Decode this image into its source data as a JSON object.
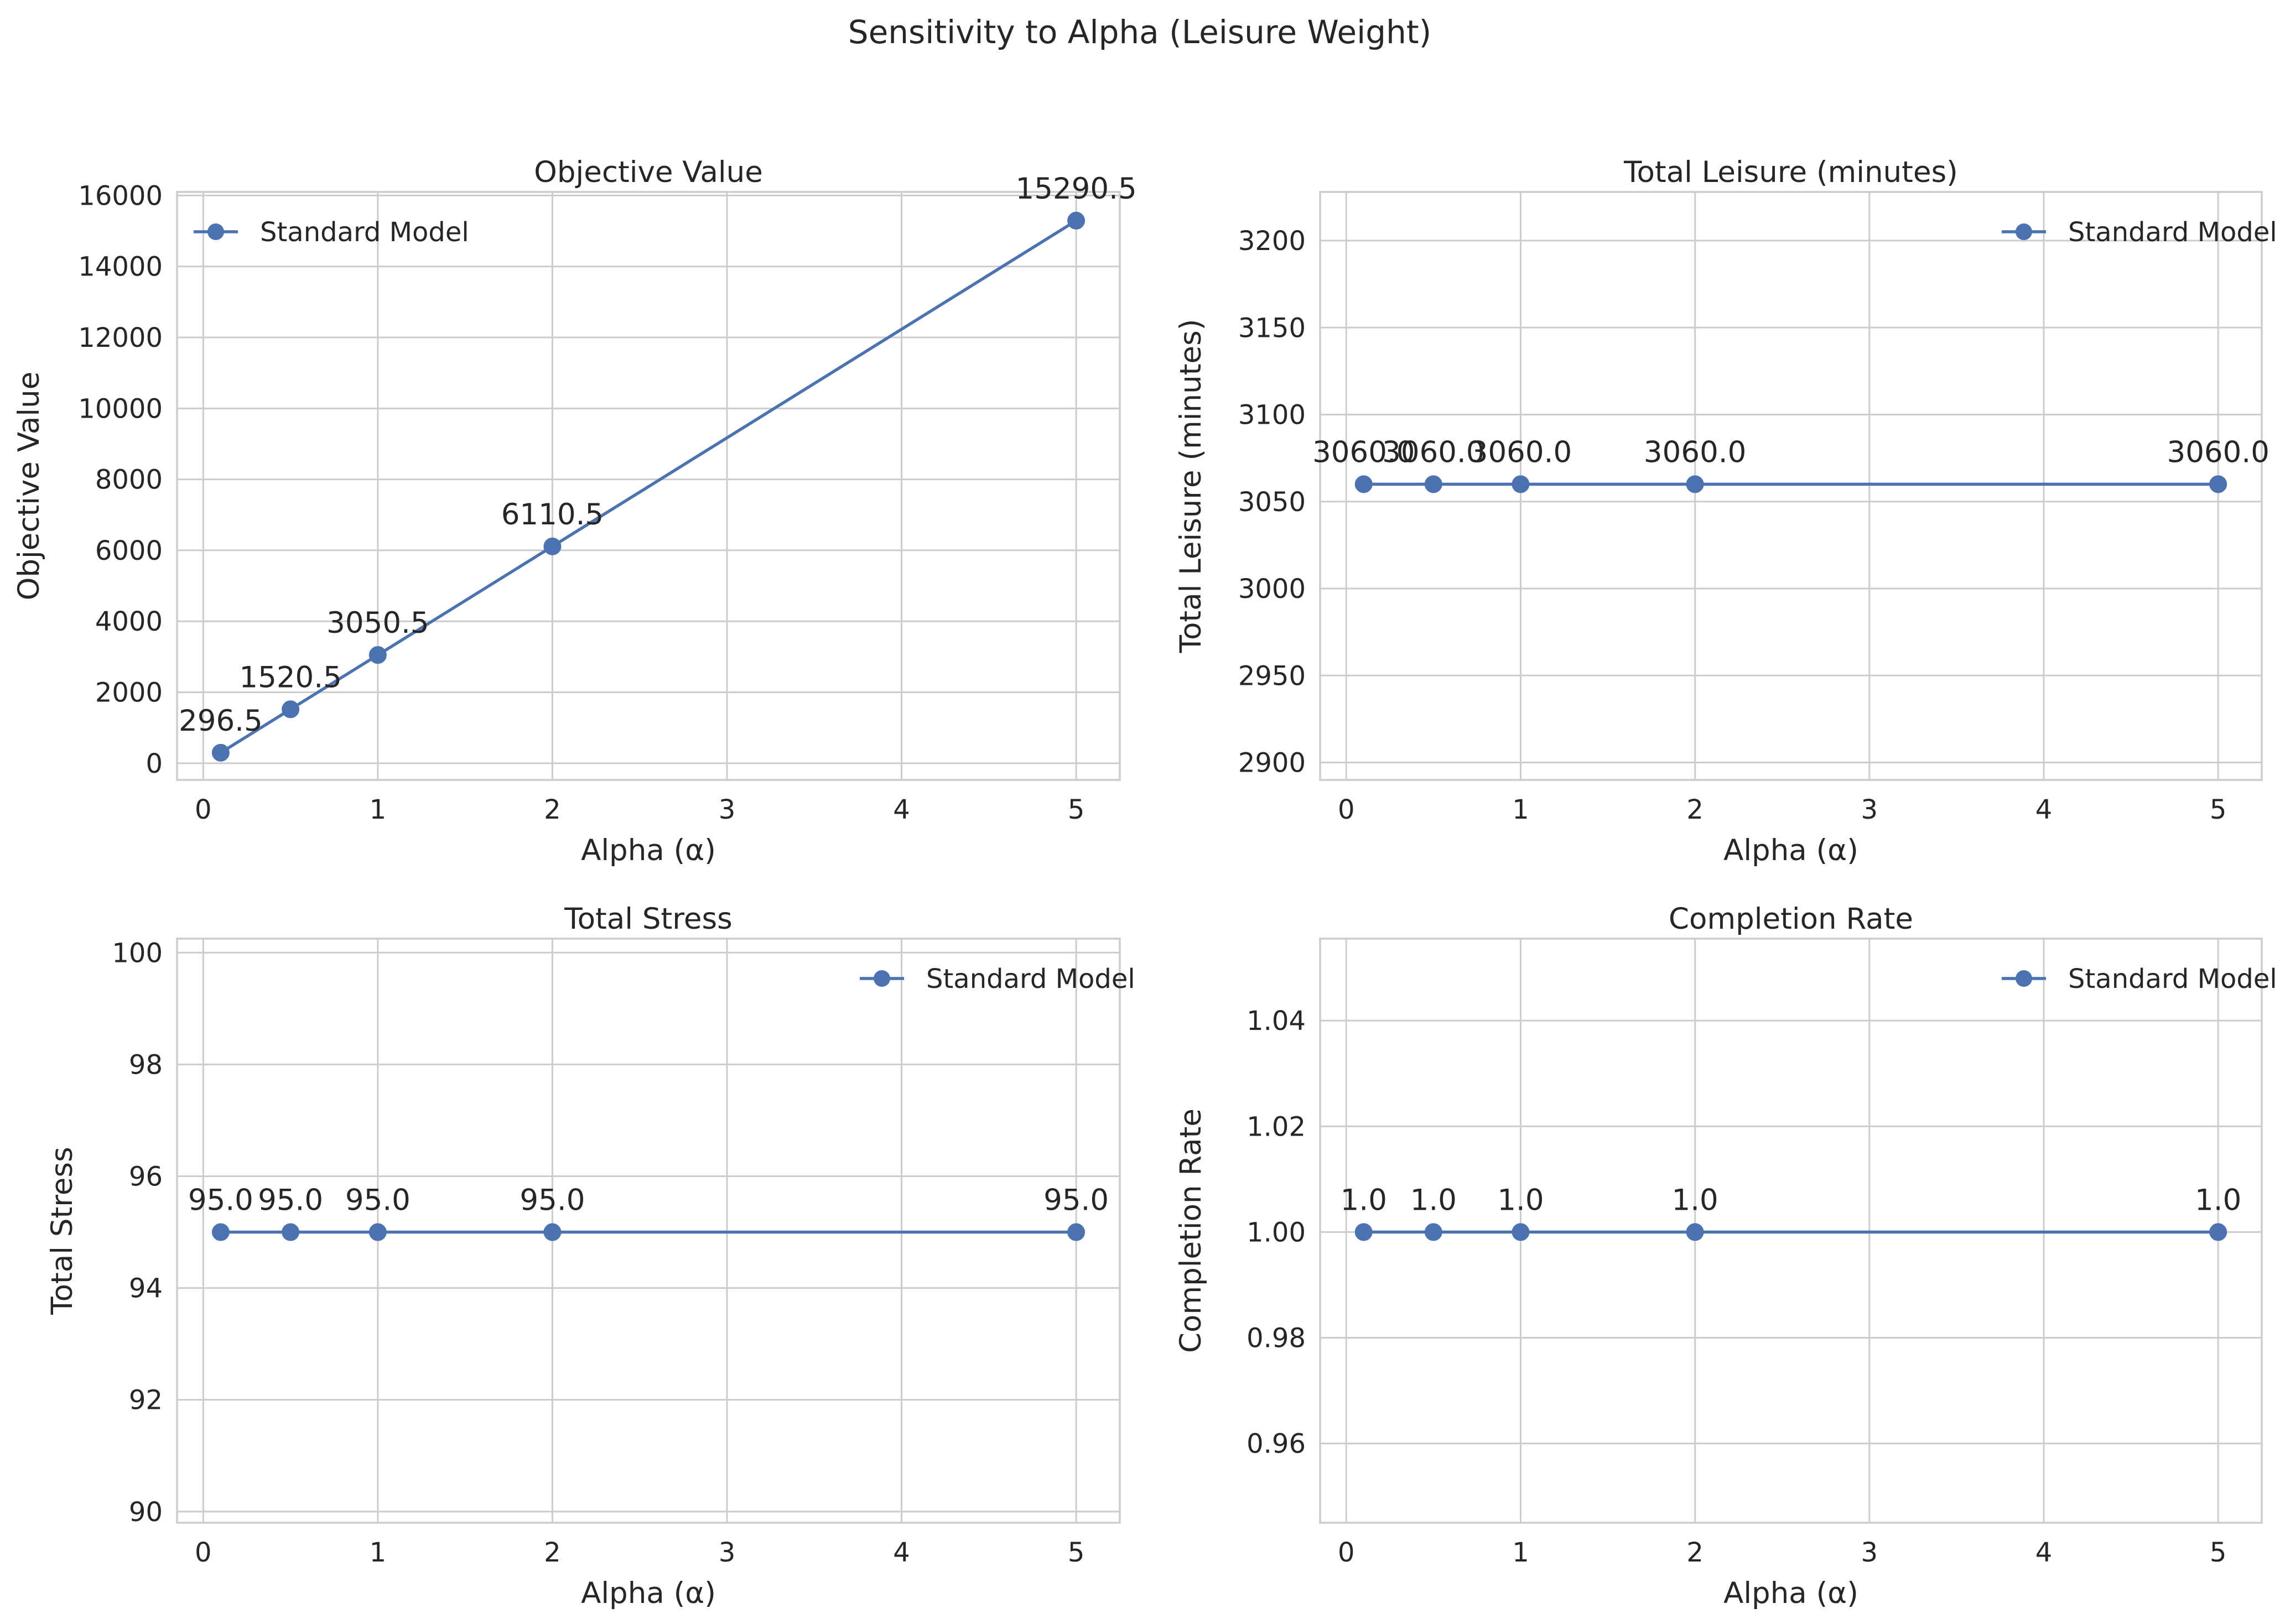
{
  "suptitle": "Sensitivity to Alpha (Leisure Weight)",
  "colors": {
    "series": "#4c72b0",
    "grid": "#cccccc",
    "text": "#262626"
  },
  "chart_data": [
    {
      "type": "line",
      "title": "Objective Value",
      "xlabel": "Alpha (α)",
      "ylabel": "Objective Value",
      "x": [
        0.1,
        0.5,
        1,
        2,
        5
      ],
      "series": [
        {
          "name": "Standard Model",
          "values": [
            296.5,
            1520.5,
            3050.5,
            6110.5,
            15290.5
          ]
        }
      ],
      "data_labels": [
        "296.5",
        "1520.5",
        "3050.5",
        "6110.5",
        "15290.5"
      ],
      "xlim": [
        -0.15,
        5.25
      ],
      "ylim": [
        -470,
        16100
      ],
      "xticks": [
        0,
        1,
        2,
        3,
        4,
        5
      ],
      "xtick_labels": [
        "0",
        "1",
        "2",
        "3",
        "4",
        "5"
      ],
      "yticks": [
        0,
        2000,
        4000,
        6000,
        8000,
        10000,
        12000,
        14000,
        16000
      ],
      "ytick_labels": [
        "0",
        "2000",
        "4000",
        "6000",
        "8000",
        "10000",
        "12000",
        "14000",
        "16000"
      ],
      "legend_position": "upper left",
      "grid": true
    },
    {
      "type": "line",
      "title": "Total Leisure (minutes)",
      "xlabel": "Alpha (α)",
      "ylabel": "Total Leisure (minutes)",
      "x": [
        0.1,
        0.5,
        1,
        2,
        5
      ],
      "series": [
        {
          "name": "Standard Model",
          "values": [
            3060.0,
            3060.0,
            3060.0,
            3060.0,
            3060.0
          ]
        }
      ],
      "data_labels": [
        "3060.0",
        "3060.0",
        "3060.0",
        "3060.0",
        "3060.0"
      ],
      "xlim": [
        -0.15,
        5.25
      ],
      "ylim": [
        2890,
        3228
      ],
      "xticks": [
        0,
        1,
        2,
        3,
        4,
        5
      ],
      "xtick_labels": [
        "0",
        "1",
        "2",
        "3",
        "4",
        "5"
      ],
      "yticks": [
        2900,
        2950,
        3000,
        3050,
        3100,
        3150,
        3200
      ],
      "ytick_labels": [
        "2900",
        "2950",
        "3000",
        "3050",
        "3100",
        "3150",
        "3200"
      ],
      "legend_position": "upper right",
      "grid": true
    },
    {
      "type": "line",
      "title": "Total Stress",
      "xlabel": "Alpha (α)",
      "ylabel": "Total Stress",
      "x": [
        0.1,
        0.5,
        1,
        2,
        5
      ],
      "series": [
        {
          "name": "Standard Model",
          "values": [
            95.0,
            95.0,
            95.0,
            95.0,
            95.0
          ]
        }
      ],
      "data_labels": [
        "95.0",
        "95.0",
        "95.0",
        "95.0",
        "95.0"
      ],
      "xlim": [
        -0.15,
        5.25
      ],
      "ylim": [
        89.8,
        100.25
      ],
      "xticks": [
        0,
        1,
        2,
        3,
        4,
        5
      ],
      "xtick_labels": [
        "0",
        "1",
        "2",
        "3",
        "4",
        "5"
      ],
      "yticks": [
        90,
        92,
        94,
        96,
        98,
        100
      ],
      "ytick_labels": [
        "90",
        "92",
        "94",
        "96",
        "98",
        "100"
      ],
      "legend_position": "upper right",
      "grid": true
    },
    {
      "type": "line",
      "title": "Completion Rate",
      "xlabel": "Alpha (α)",
      "ylabel": "Completion Rate",
      "x": [
        0.1,
        0.5,
        1,
        2,
        5
      ],
      "series": [
        {
          "name": "Standard Model",
          "values": [
            1.0,
            1.0,
            1.0,
            1.0,
            1.0
          ]
        }
      ],
      "data_labels": [
        "1.0",
        "1.0",
        "1.0",
        "1.0",
        "1.0"
      ],
      "xlim": [
        -0.15,
        5.25
      ],
      "ylim": [
        0.945,
        1.0555
      ],
      "xticks": [
        0,
        1,
        2,
        3,
        4,
        5
      ],
      "xtick_labels": [
        "0",
        "1",
        "2",
        "3",
        "4",
        "5"
      ],
      "yticks": [
        0.96,
        0.98,
        1.0,
        1.02,
        1.04
      ],
      "ytick_labels": [
        "0.96",
        "0.98",
        "1.00",
        "1.02",
        "1.04"
      ],
      "legend_position": "upper right",
      "grid": true
    }
  ]
}
